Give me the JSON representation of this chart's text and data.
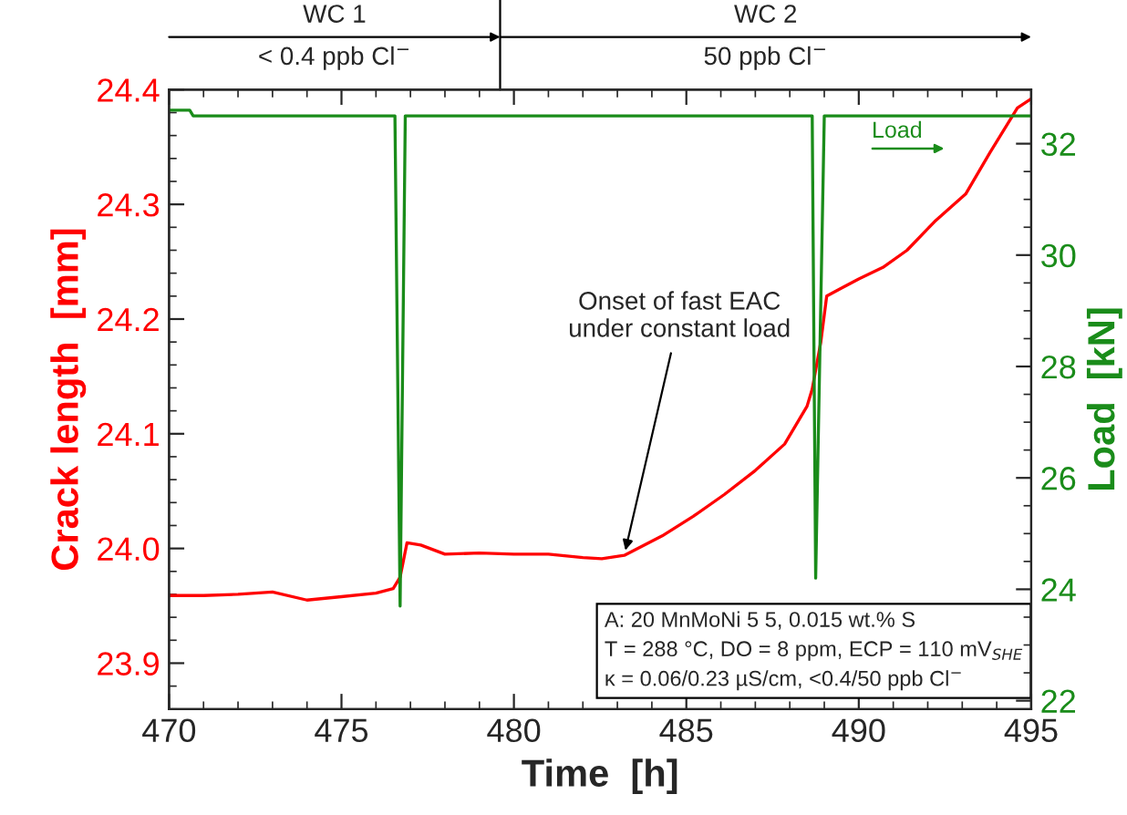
{
  "chart_data": {
    "type": "line",
    "xlabel": "Time  [h]",
    "ylabel": "Crack length  [mm]",
    "y2label": "Load  [kN]",
    "xlim": [
      470,
      495
    ],
    "xticks": [
      470,
      475,
      480,
      485,
      490,
      495
    ],
    "ylim": [
      23.86,
      24.4
    ],
    "yticks": [
      23.9,
      {
        "value": 24.0,
        "label": "24.0"
      },
      24.1,
      24.2,
      24.3,
      24.4
    ],
    "y2lim": [
      21.85,
      32.97
    ],
    "y2ticks": [
      22,
      24,
      26,
      28,
      30,
      32
    ],
    "grid": false,
    "legend": false,
    "marker": "none",
    "line_style": "solid",
    "series": [
      {
        "color": "#ff0000",
        "x": [
          470,
          471,
          472,
          473,
          474,
          475,
          476,
          476.5,
          476.7,
          476.9,
          477.3,
          478,
          479,
          480,
          481,
          482,
          482.55,
          483.2,
          484.3,
          485.2,
          486.1,
          487.0,
          487.85,
          488.5,
          488.65,
          488.9,
          489.07,
          489.5,
          490.0,
          490.7,
          491.4,
          492.2,
          493.1,
          493.8,
          494.6,
          495
        ],
        "values": [
          23.959,
          23.959,
          23.96,
          23.962,
          23.955,
          23.958,
          23.961,
          23.965,
          23.975,
          24.005,
          24.003,
          23.995,
          23.996,
          23.995,
          23.995,
          23.992,
          23.991,
          23.994,
          24.011,
          24.028,
          24.047,
          24.068,
          24.091,
          24.124,
          24.139,
          24.18,
          24.22,
          24.227,
          24.235,
          24.245,
          24.26,
          24.285,
          24.309,
          24.345,
          24.384,
          24.392
        ]
      },
      {
        "color": "#1a8c1a",
        "axis": "y2",
        "x": [
          470,
          470.6,
          470.7,
          476.55,
          476.7,
          476.85,
          488.65,
          488.75,
          489.0,
          495
        ],
        "values": [
          32.6,
          32.6,
          32.5,
          32.5,
          23.7,
          32.5,
          32.5,
          24.2,
          32.5,
          32.5
        ]
      }
    ],
    "annotations": [
      {
        "text": "Onset of fast EAC\nunder constant load",
        "x": 483.2,
        "y": 23.994
      },
      "Load",
      "A: 20 MnMoNi 5 5, 0.015 wt.% S\nT = 288 °C, DO = 8 ppm, ECP = 110 mV$_{SHE}$\nκ = 0.06/0.23 µS/cm, <0.4/50 ppb Cl$^{−}$",
      "WC 1",
      "< 0.4 ppb Cl$^{−}$",
      "WC 2",
      "50 ppb Cl$^{−}$"
    ]
  }
}
